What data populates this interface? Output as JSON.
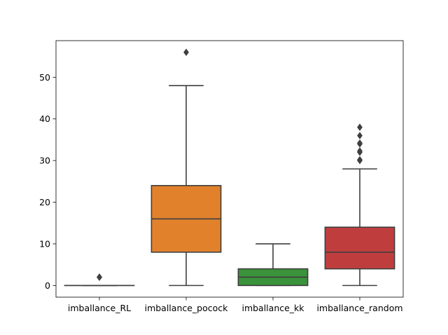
{
  "chart_data": {
    "type": "box",
    "categories": [
      "imballance_RL",
      "imballance_pocock",
      "imballance_kk",
      "imballance_random"
    ],
    "boxes": [
      {
        "name": "imballance_RL",
        "color": "#3a75af",
        "whisker_low": 0,
        "q1": 0,
        "median": 0,
        "q3": 0,
        "whisker_high": 0,
        "outliers": [
          2,
          2,
          2
        ]
      },
      {
        "name": "imballance_pocock",
        "color": "#e1812c",
        "whisker_low": 0,
        "q1": 8,
        "median": 16,
        "q3": 24,
        "whisker_high": 48,
        "outliers": [
          56
        ]
      },
      {
        "name": "imballance_kk",
        "color": "#3a923a",
        "whisker_low": 0,
        "q1": 0,
        "median": 2,
        "q3": 4,
        "whisker_high": 10,
        "outliers": []
      },
      {
        "name": "imballance_random",
        "color": "#c03d3e",
        "whisker_low": 0,
        "q1": 4,
        "median": 8,
        "q3": 14,
        "whisker_high": 28,
        "outliers": [
          30,
          30.2,
          32,
          32.3,
          34,
          34.2,
          36,
          38
        ]
      }
    ],
    "y_ticks": [
      0,
      10,
      20,
      30,
      40,
      50
    ],
    "ylim": [
      -2.8,
      58.8
    ],
    "title": "",
    "xlabel": "",
    "ylabel": "",
    "grid": false,
    "line_color": "#3f3f3f"
  }
}
